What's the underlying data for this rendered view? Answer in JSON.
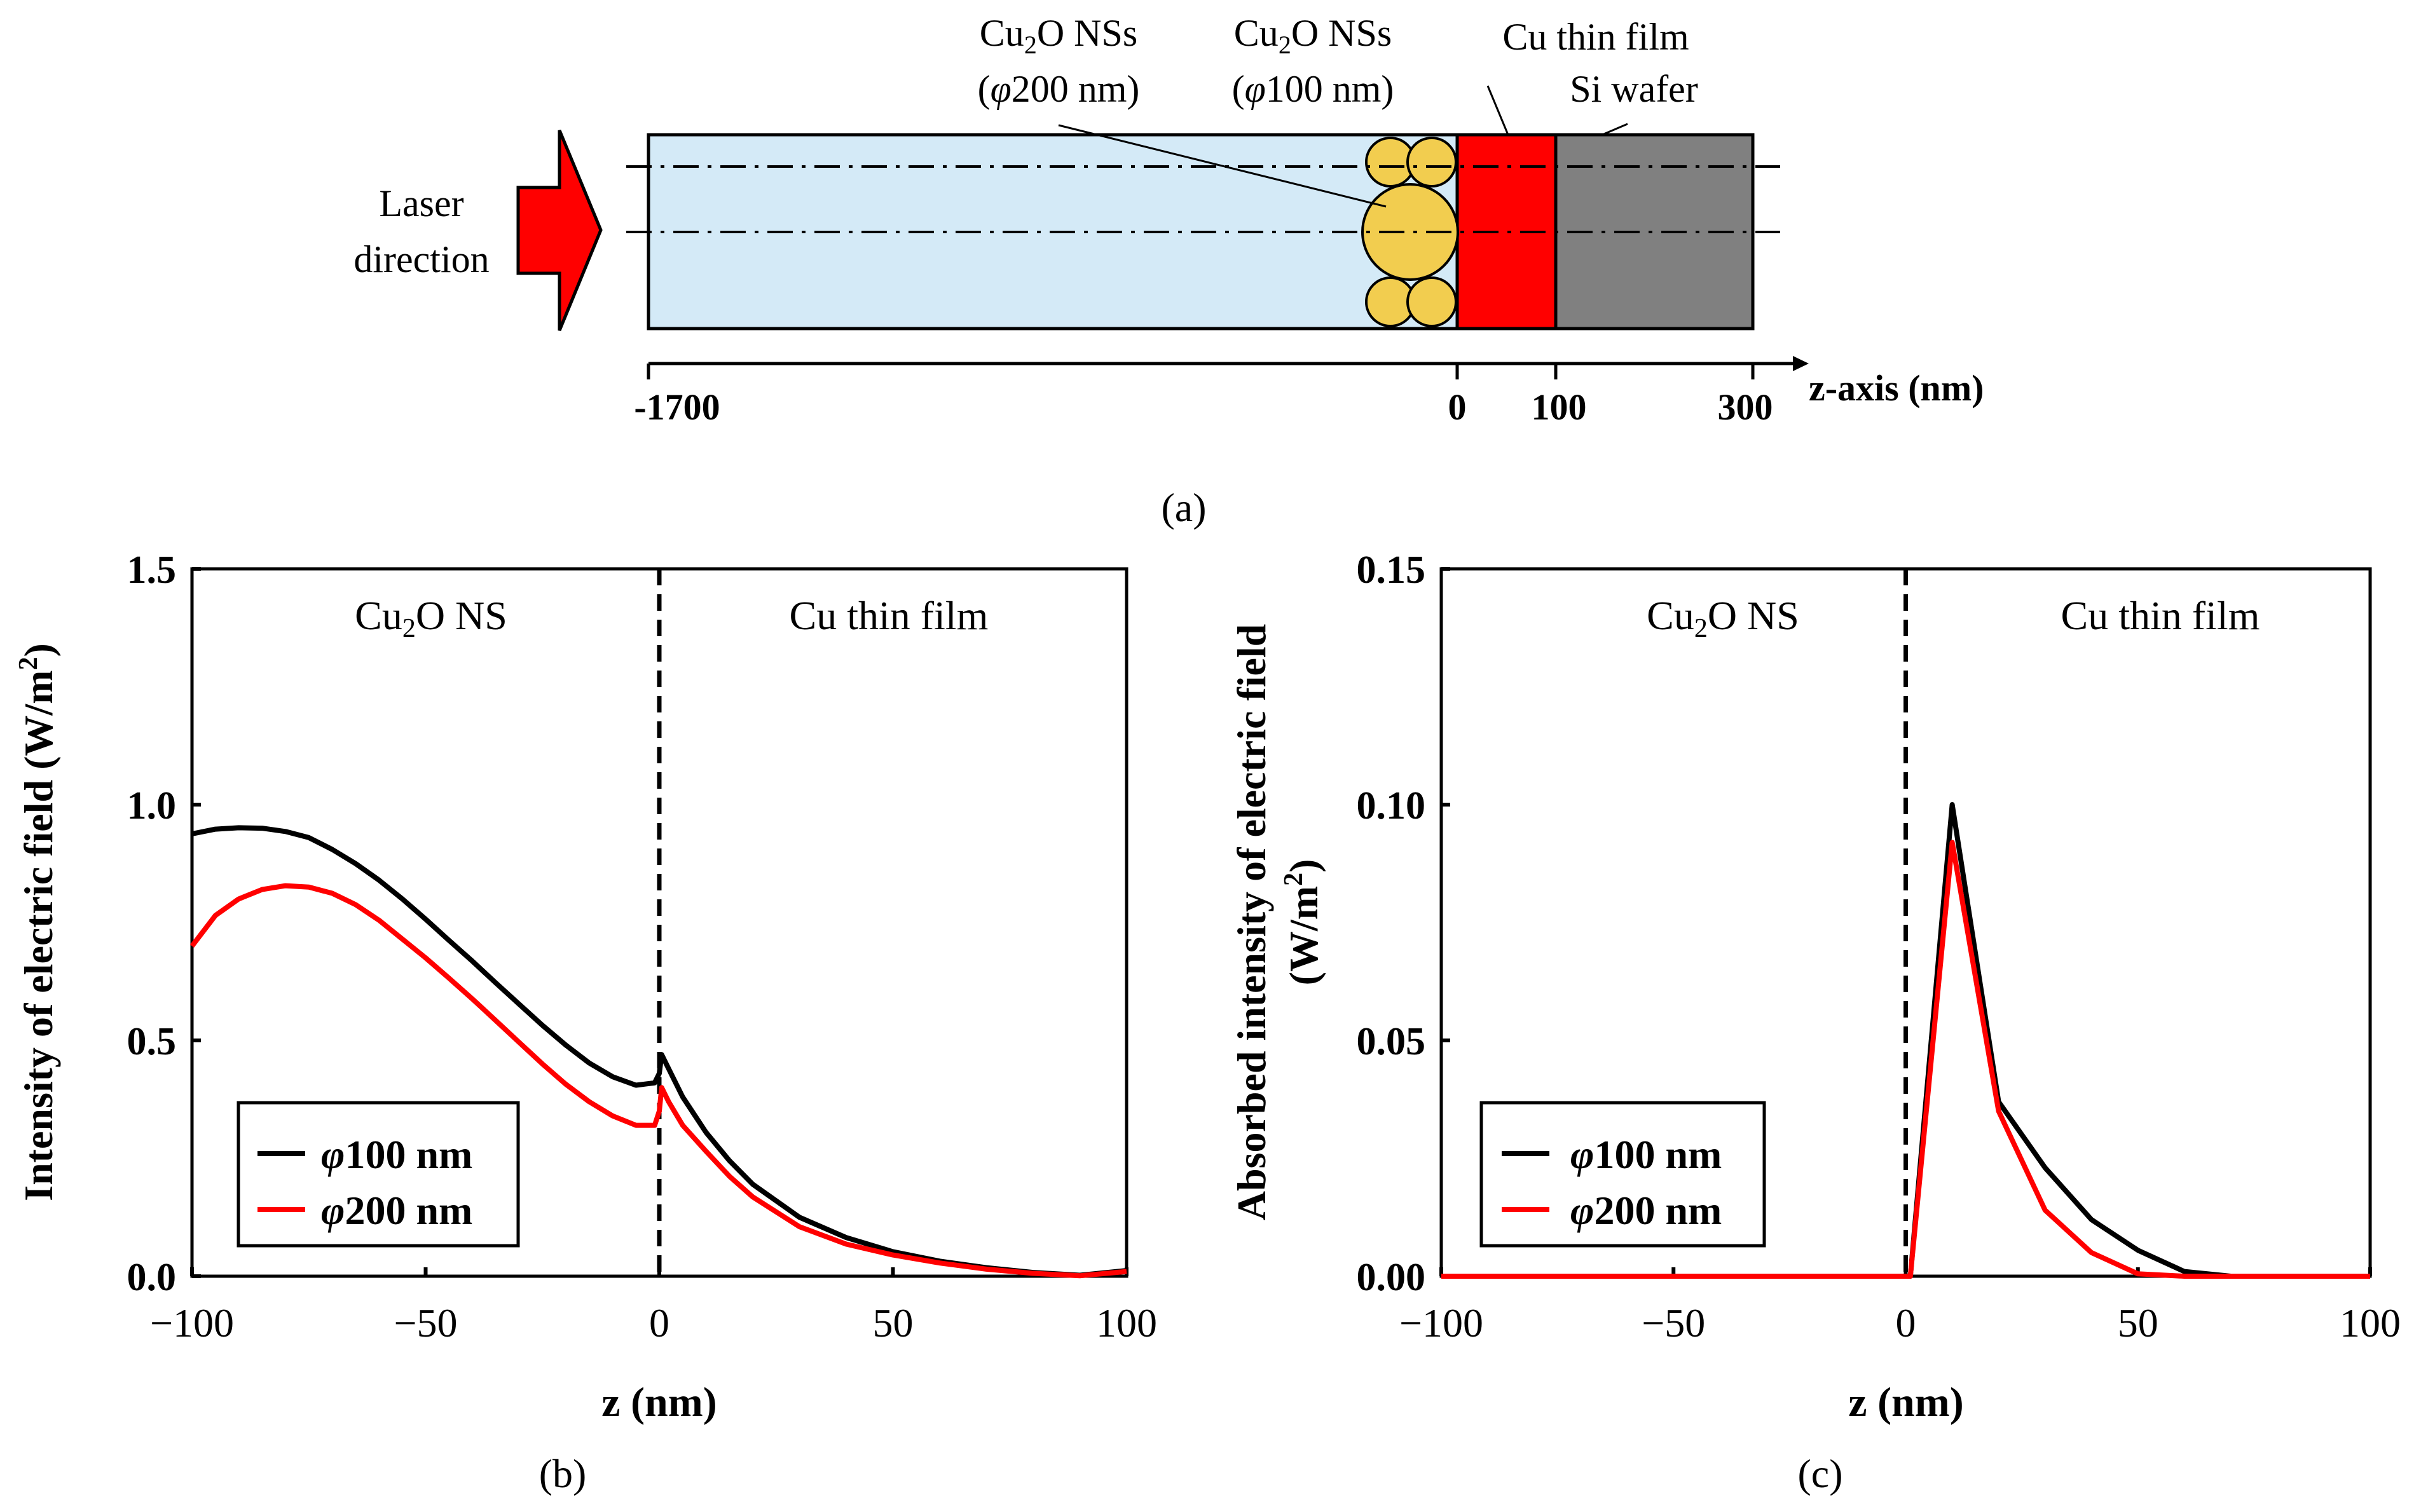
{
  "panel_a": {
    "label": "(a)",
    "laser_label_line1": "Laser",
    "laser_label_line2": "direction",
    "ns200_line1_pre": "Cu",
    "ns200_line1_sub": "2",
    "ns200_line1_post": "O NSs",
    "ns200_line2_open": "(",
    "ns200_line2_phi": "φ",
    "ns200_line2_post": "200 nm)",
    "ns100_line1_pre": "Cu",
    "ns100_line1_sub": "2",
    "ns100_line1_post": "O NSs",
    "ns100_line2_open": "(",
    "ns100_line2_phi": "φ",
    "ns100_line2_post": "100 nm)",
    "film_label": "Cu thin film",
    "si_label": "Si wafer",
    "axis_label": "z-axis (nm)",
    "ticks": [
      "-1700",
      "0",
      "100",
      "300"
    ],
    "colors": {
      "medium": "#d4eaf7",
      "nanosphere": "#f2cd4f",
      "film": "#ff0000",
      "si": "#808080",
      "arrow": "#ff0000"
    }
  },
  "chart_data": [
    {
      "type": "line",
      "panel": "(b)",
      "title": "",
      "xlabel": "z (nm)",
      "ylabel": "Intensity of electric field (W/m²)",
      "ylabel_text": "Intensity of electric field (W/m",
      "ylabel_sup": "2",
      "ylabel_close": ")",
      "xlim": [
        -100,
        100
      ],
      "ylim": [
        0,
        1.5
      ],
      "xticks": [
        -100,
        -50,
        0,
        50,
        100
      ],
      "xtick_labels": [
        "−100",
        "−50",
        "0",
        "50",
        "100"
      ],
      "yticks": [
        0,
        0.5,
        1.0,
        1.5
      ],
      "ytick_labels": [
        "0.0",
        "0.5",
        "1.0",
        "1.5"
      ],
      "region_left_pre": "Cu",
      "region_left_sub": "2",
      "region_left_post": "O NS",
      "region_right": "Cu thin film",
      "divider_x": 0,
      "legend_position": "bottom-left",
      "series": [
        {
          "name": "φ100 nm",
          "legend_phi": "φ",
          "legend_rest": "100 nm",
          "color": "#000000",
          "x": [
            -100,
            -95,
            -90,
            -85,
            -80,
            -75,
            -70,
            -65,
            -60,
            -55,
            -50,
            -45,
            -40,
            -35,
            -30,
            -25,
            -20,
            -15,
            -10,
            -5,
            -1,
            0,
            0.5,
            2,
            5,
            10,
            15,
            20,
            30,
            40,
            50,
            60,
            70,
            80,
            90,
            100
          ],
          "y": [
            0.938,
            0.948,
            0.951,
            0.95,
            0.943,
            0.93,
            0.905,
            0.875,
            0.84,
            0.8,
            0.757,
            0.712,
            0.668,
            0.622,
            0.577,
            0.532,
            0.49,
            0.452,
            0.423,
            0.405,
            0.41,
            0.43,
            0.47,
            0.44,
            0.38,
            0.305,
            0.245,
            0.195,
            0.125,
            0.082,
            0.052,
            0.032,
            0.018,
            0.008,
            0.002,
            0.012
          ]
        },
        {
          "name": "φ200 nm",
          "legend_phi": "φ",
          "legend_rest": "200 nm",
          "color": "#ff0000",
          "x": [
            -100,
            -95,
            -90,
            -85,
            -80,
            -75,
            -70,
            -65,
            -60,
            -55,
            -50,
            -45,
            -40,
            -35,
            -30,
            -25,
            -20,
            -15,
            -10,
            -5,
            -1,
            0,
            0.5,
            2,
            5,
            10,
            15,
            20,
            30,
            40,
            50,
            60,
            70,
            80,
            90,
            100
          ],
          "y": [
            0.7,
            0.765,
            0.8,
            0.82,
            0.828,
            0.825,
            0.812,
            0.788,
            0.755,
            0.715,
            0.675,
            0.632,
            0.588,
            0.542,
            0.496,
            0.45,
            0.407,
            0.37,
            0.34,
            0.32,
            0.32,
            0.35,
            0.4,
            0.37,
            0.32,
            0.265,
            0.212,
            0.168,
            0.105,
            0.068,
            0.045,
            0.028,
            0.015,
            0.006,
            0.001,
            0.01
          ]
        }
      ]
    },
    {
      "type": "line",
      "panel": "(c)",
      "title": "",
      "xlabel": "z (nm)",
      "ylabel_line1": "Absorbed intensity of electric field",
      "ylabel_line2_pre": "(W/m",
      "ylabel_line2_sup": "2",
      "ylabel_line2_post": ")",
      "xlim": [
        -100,
        100
      ],
      "ylim": [
        0,
        0.15
      ],
      "xticks": [
        -100,
        -50,
        0,
        50,
        100
      ],
      "xtick_labels": [
        "−100",
        "−50",
        "0",
        "50",
        "100"
      ],
      "yticks": [
        0,
        0.05,
        0.1,
        0.15
      ],
      "ytick_labels": [
        "0.00",
        "0.05",
        "0.10",
        "0.15"
      ],
      "region_left_pre": "Cu",
      "region_left_sub": "2",
      "region_left_post": "O NS",
      "region_right": "Cu thin film",
      "divider_x": 0,
      "legend_position": "bottom-left",
      "series": [
        {
          "name": "φ100 nm",
          "legend_phi": "φ",
          "legend_rest": "100 nm",
          "color": "#000000",
          "x": [
            -100,
            0,
            1,
            10,
            20,
            30,
            40,
            50,
            60,
            70,
            75,
            100
          ],
          "y": [
            0,
            0,
            0,
            0.1,
            0.037,
            0.023,
            0.012,
            0.0055,
            0.001,
            0,
            0,
            0
          ]
        },
        {
          "name": "φ200 nm",
          "legend_phi": "φ",
          "legend_rest": "200 nm",
          "color": "#ff0000",
          "x": [
            -100,
            0,
            1,
            10,
            20,
            30,
            40,
            50,
            60,
            100
          ],
          "y": [
            0,
            0,
            0,
            0.092,
            0.035,
            0.014,
            0.005,
            0.0005,
            0,
            0
          ]
        }
      ]
    }
  ]
}
